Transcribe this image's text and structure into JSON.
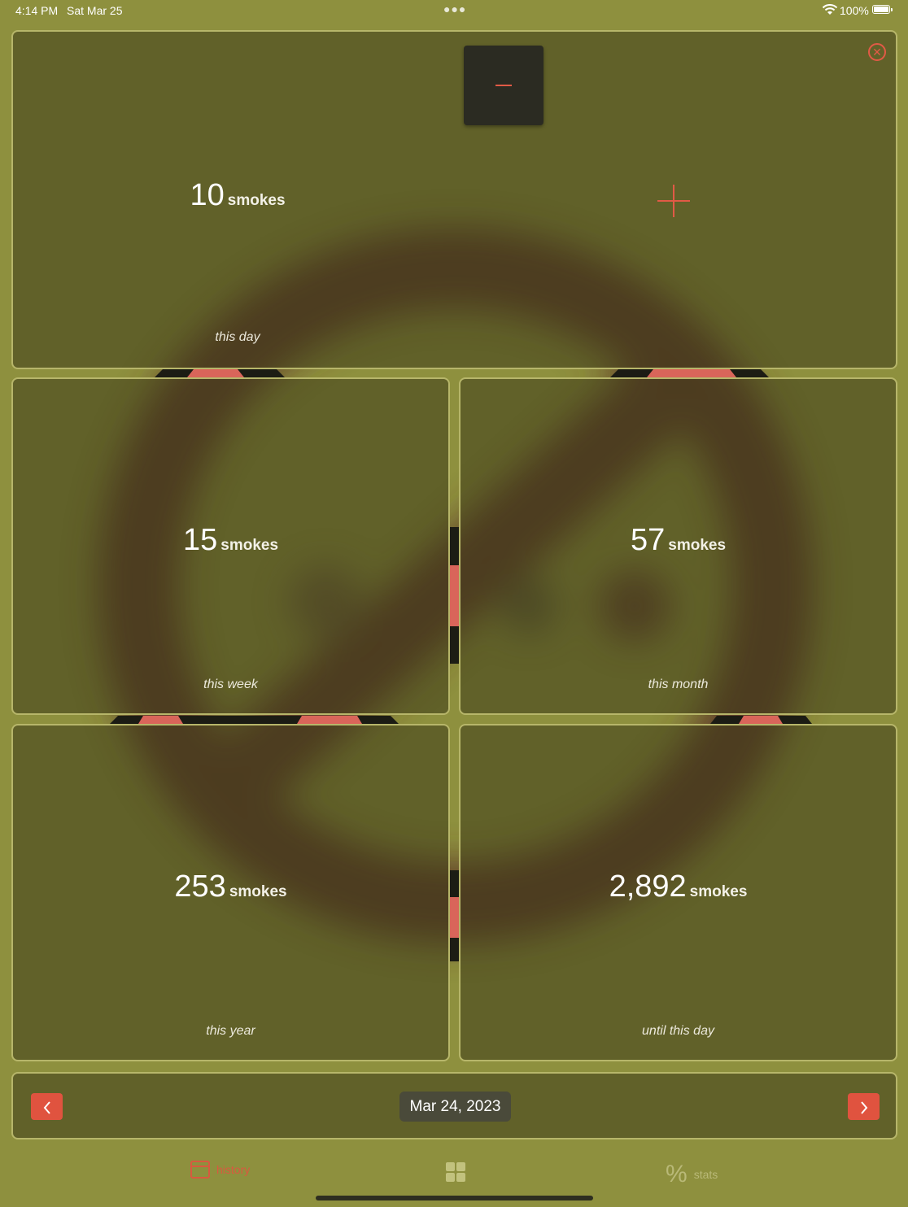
{
  "status_bar": {
    "time": "4:14 PM",
    "date": "Sat Mar 25",
    "battery": "100%"
  },
  "colors": {
    "background": "#8e903e",
    "accent": "#e0533f",
    "card_border": "#b7b66a"
  },
  "counter": {
    "minus_icon": "minus-icon",
    "plus_icon": "plus-icon",
    "close_icon": "close-circle-icon"
  },
  "stats": {
    "day": {
      "value": "10",
      "unit": "smokes",
      "caption": "this day"
    },
    "week": {
      "value": "15",
      "unit": "smokes",
      "caption": "this week"
    },
    "month": {
      "value": "57",
      "unit": "smokes",
      "caption": "this month"
    },
    "year": {
      "value": "253",
      "unit": "smokes",
      "caption": "this year"
    },
    "total": {
      "value": "2,892",
      "unit": "smokes",
      "caption": "until this day"
    }
  },
  "date_nav": {
    "prev_icon": "chevron-left-icon",
    "next_icon": "chevron-right-icon",
    "date": "Mar 24, 2023"
  },
  "tabbar": {
    "history_label": "history",
    "home_icon": "grid-icon",
    "stats_label": "stats",
    "stats_symbol": "%"
  }
}
